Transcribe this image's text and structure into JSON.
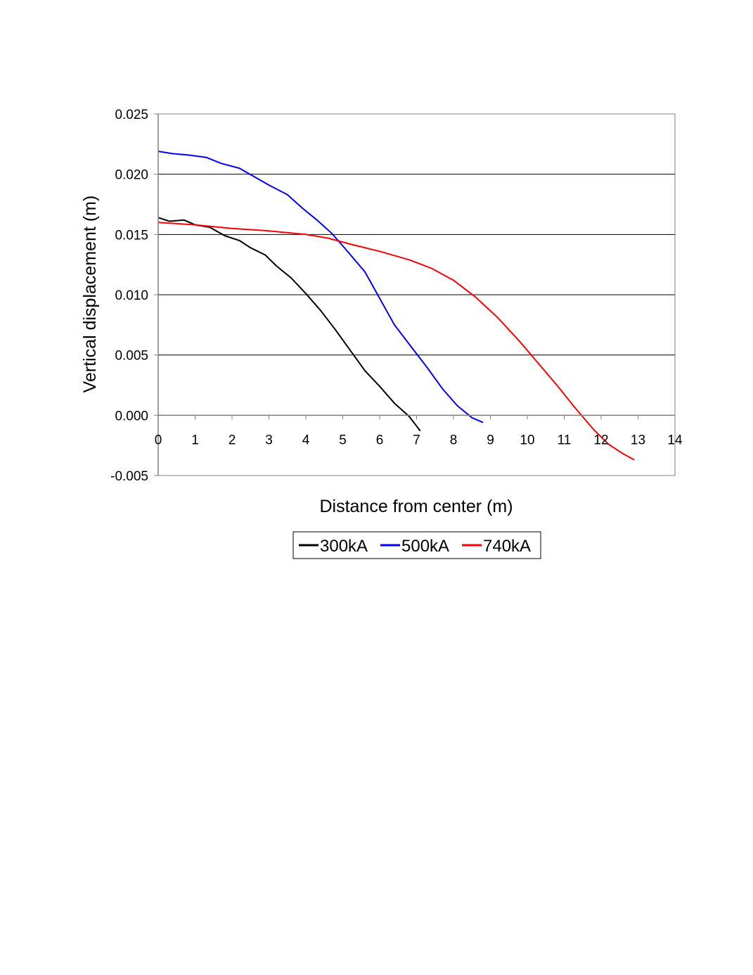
{
  "chart_data": {
    "type": "line",
    "title": "",
    "xlabel": "Distance from center (m)",
    "ylabel": "Vertical displacement (m)",
    "xlim": [
      0,
      14
    ],
    "ylim": [
      -0.005,
      0.025
    ],
    "x_ticks": [
      "0",
      "1",
      "2",
      "3",
      "4",
      "5",
      "6",
      "7",
      "8",
      "9",
      "10",
      "11",
      "12",
      "13",
      "14"
    ],
    "y_ticks": [
      "-0.005",
      "0.000",
      "0.005",
      "0.010",
      "0.015",
      "0.020",
      "0.025"
    ],
    "gridlines": "horizontal major",
    "legend_position": "bottom",
    "series": [
      {
        "name": "300kA",
        "color": "#000000",
        "points": [
          [
            0,
            0.0164
          ],
          [
            0.3,
            0.0161
          ],
          [
            0.7,
            0.0162
          ],
          [
            1.0,
            0.0158
          ],
          [
            1.4,
            0.0156
          ],
          [
            1.8,
            0.0149
          ],
          [
            2.2,
            0.0145
          ],
          [
            2.5,
            0.0139
          ],
          [
            2.9,
            0.0133
          ],
          [
            3.2,
            0.0124
          ],
          [
            3.6,
            0.0114
          ],
          [
            4.0,
            0.0101
          ],
          [
            4.4,
            0.0087
          ],
          [
            4.8,
            0.0071
          ],
          [
            5.2,
            0.0054
          ],
          [
            5.6,
            0.0037
          ],
          [
            6.0,
            0.0024
          ],
          [
            6.4,
            0.001
          ],
          [
            6.8,
            -0.0001
          ],
          [
            7.1,
            -0.0013
          ]
        ]
      },
      {
        "name": "500kA",
        "color": "#0000ff",
        "points": [
          [
            0,
            0.0219
          ],
          [
            0.4,
            0.0217
          ],
          [
            0.8,
            0.0216
          ],
          [
            1.3,
            0.0214
          ],
          [
            1.7,
            0.0209
          ],
          [
            2.2,
            0.0205
          ],
          [
            2.6,
            0.0198
          ],
          [
            3.0,
            0.0191
          ],
          [
            3.5,
            0.0183
          ],
          [
            3.9,
            0.0172
          ],
          [
            4.3,
            0.0162
          ],
          [
            4.7,
            0.0151
          ],
          [
            5.1,
            0.0137
          ],
          [
            5.6,
            0.0119
          ],
          [
            6.0,
            0.0097
          ],
          [
            6.4,
            0.0075
          ],
          [
            6.9,
            0.0055
          ],
          [
            7.3,
            0.0039
          ],
          [
            7.7,
            0.0022
          ],
          [
            8.1,
            0.0008
          ],
          [
            8.5,
            -0.0002
          ],
          [
            8.8,
            -0.0006
          ]
        ]
      },
      {
        "name": "740kA",
        "color": "#ff0000",
        "points": [
          [
            0,
            0.016
          ],
          [
            1.0,
            0.0158
          ],
          [
            2.0,
            0.0155
          ],
          [
            3.0,
            0.0153
          ],
          [
            4.0,
            0.015
          ],
          [
            4.6,
            0.0147
          ],
          [
            5.2,
            0.0142
          ],
          [
            6.0,
            0.0136
          ],
          [
            6.8,
            0.0129
          ],
          [
            7.4,
            0.0122
          ],
          [
            8.0,
            0.0112
          ],
          [
            8.6,
            0.0098
          ],
          [
            9.2,
            0.0081
          ],
          [
            9.8,
            0.0061
          ],
          [
            10.3,
            0.0043
          ],
          [
            10.8,
            0.0025
          ],
          [
            11.3,
            0.0006
          ],
          [
            11.8,
            -0.0012
          ],
          [
            12.2,
            -0.0024
          ],
          [
            12.6,
            -0.0032
          ],
          [
            12.9,
            -0.0037
          ]
        ]
      }
    ]
  }
}
